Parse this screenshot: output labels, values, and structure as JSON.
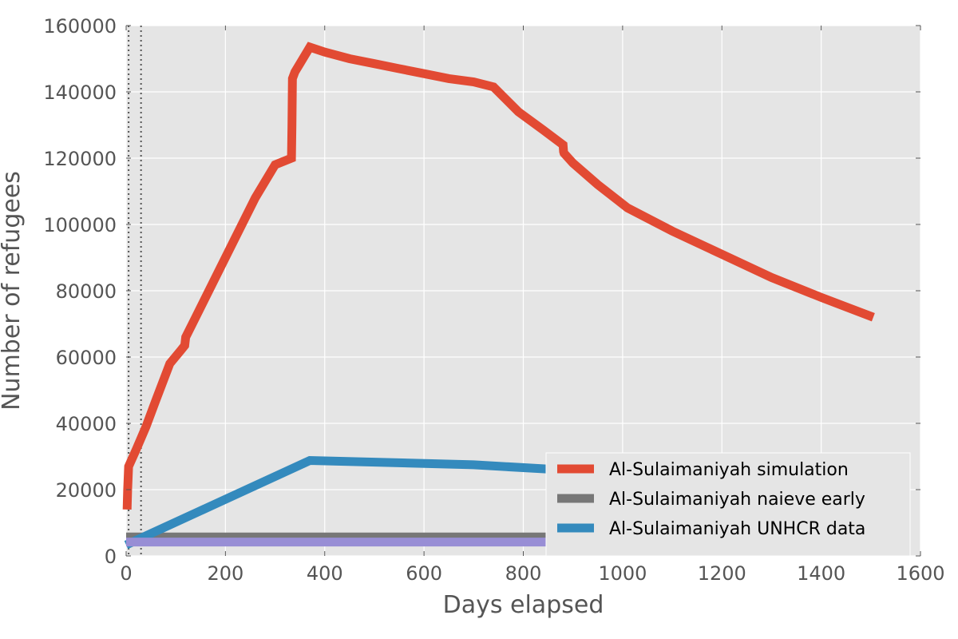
{
  "chart_data": {
    "type": "line",
    "title": "",
    "xlabel": "Days elapsed",
    "ylabel": "Number of refugees",
    "xlim": [
      0,
      1600
    ],
    "ylim": [
      0,
      160000
    ],
    "xticks": [
      0,
      200,
      400,
      600,
      800,
      1000,
      1200,
      1400,
      1600
    ],
    "yticks": [
      0,
      20000,
      40000,
      60000,
      80000,
      100000,
      120000,
      140000,
      160000
    ],
    "grid": true,
    "legend_position": "lower-right",
    "vlines": [
      5,
      30
    ],
    "series": [
      {
        "name": "Al-Sulaimaniyah simulation",
        "color": "#E24A33",
        "in_legend": true,
        "x": [
          2,
          3,
          5,
          20,
          40,
          60,
          88,
          110,
          118,
          120,
          140,
          180,
          220,
          260,
          300,
          333,
          334,
          335,
          340,
          370,
          400,
          450,
          500,
          550,
          600,
          650,
          700,
          740,
          790,
          840,
          880,
          881,
          882,
          900,
          950,
          1010,
          1100,
          1200,
          1300,
          1400,
          1505
        ],
        "y": [
          14000,
          20000,
          27000,
          32000,
          39000,
          47000,
          58000,
          62000,
          63500,
          66000,
          72000,
          84000,
          96000,
          108000,
          118000,
          120000,
          130000,
          144000,
          146000,
          153500,
          152000,
          150000,
          148500,
          147000,
          145500,
          144000,
          143000,
          141500,
          134000,
          128500,
          124000,
          122000,
          121500,
          118500,
          112000,
          105000,
          98000,
          91000,
          84000,
          78000,
          72000
        ]
      },
      {
        "name": "Al-Sulaimaniyah naieve early",
        "color": "#777777",
        "in_legend": true,
        "x": [
          0,
          850
        ],
        "y": [
          5700,
          5700
        ]
      },
      {
        "name": "Al-Sulaimaniyah UNHCR data",
        "color": "#348ABD",
        "in_legend": true,
        "x": [
          0,
          370,
          700,
          850
        ],
        "y": [
          3300,
          28800,
          27500,
          26200
        ]
      },
      {
        "name": "",
        "color": "#988ED5",
        "in_legend": false,
        "x": [
          0,
          850
        ],
        "y": [
          4200,
          4200
        ]
      }
    ]
  }
}
